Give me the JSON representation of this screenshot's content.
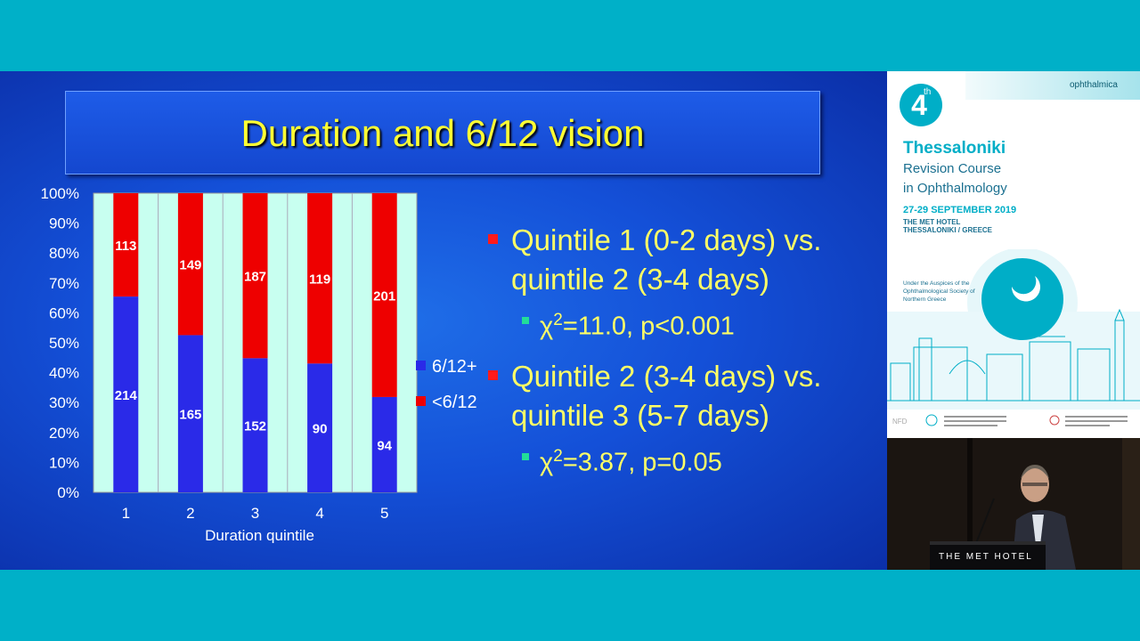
{
  "slide": {
    "title": "Duration and 6/12 vision",
    "bullets": [
      {
        "main": "Quintile 1 (0-2 days) vs. quintile 2 (3-4 days)",
        "stat_chi": "χ",
        "stat_sup": "2",
        "stat_rest": "=11.0, p<0.001"
      },
      {
        "main": "Quintile 2 (3-4 days) vs. quintile 3 (5-7 days)",
        "stat_chi": "χ",
        "stat_sup": "2",
        "stat_rest": "=3.87, p=0.05"
      }
    ]
  },
  "chart_data": {
    "type": "bar",
    "stacked": "percent",
    "categories": [
      "1",
      "2",
      "3",
      "4",
      "5"
    ],
    "series": [
      {
        "name": "6/12+",
        "color": "#2a2ae8",
        "values": [
          214,
          165,
          152,
          90,
          94
        ]
      },
      {
        "name": "<6/12",
        "color": "#ee0000",
        "values": [
          113,
          149,
          187,
          119,
          201
        ]
      }
    ],
    "xlabel": "Duration quintile",
    "ylabel": "",
    "ylim": [
      0,
      100
    ],
    "yticks": [
      "0%",
      "10%",
      "20%",
      "30%",
      "40%",
      "50%",
      "60%",
      "70%",
      "80%",
      "90%",
      "100%"
    ],
    "grid": true,
    "legend_position": "right",
    "plot_background": "#c8fff0"
  },
  "side": {
    "edition_number": "4",
    "edition_suffix": "th",
    "city": "Thessaloniki",
    "course_line1": "Revision Course",
    "course_line2": "in Ophthalmology",
    "dates": "27-29 SEPTEMBER 2019",
    "hotel_line1": "THE MET HOTEL",
    "hotel_line2": "THESSALONIKI / GREECE",
    "auspices": "Under the Auspices of the Ophthalmological Society of Northern Greece",
    "brand": "ophthalmica"
  },
  "video": {
    "podium_text": "THE MET HOTEL"
  }
}
